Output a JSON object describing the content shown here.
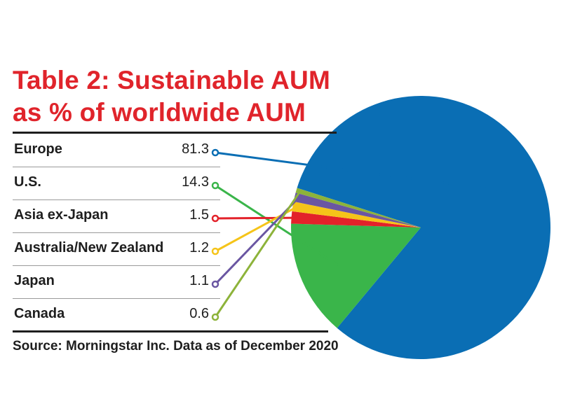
{
  "title": [
    "Table 2: Sustainable AUM",
    "as % of worldwide AUM"
  ],
  "source": "Source: Morningstar Inc. Data as of December 2020",
  "chart_data": {
    "type": "pie",
    "title": "Table 2: Sustainable AUM as % of worldwide AUM",
    "unit": "%",
    "slices": [
      {
        "label": "Europe",
        "value": 81.3,
        "value_text": "81.3",
        "color": "#0a6eb4"
      },
      {
        "label": "U.S.",
        "value": 14.3,
        "value_text": "14.3",
        "color": "#3ab54a"
      },
      {
        "label": "Asia ex-Japan",
        "value": 1.5,
        "value_text": "1.5",
        "color": "#e3222a"
      },
      {
        "label": "Australia/New Zealand",
        "value": 1.2,
        "value_text": "1.2",
        "color": "#f5c419"
      },
      {
        "label": "Japan",
        "value": 1.1,
        "value_text": "1.1",
        "color": "#6a56a2"
      },
      {
        "label": "Canada",
        "value": 0.6,
        "value_text": "0.6",
        "color": "#8db33a"
      }
    ]
  }
}
